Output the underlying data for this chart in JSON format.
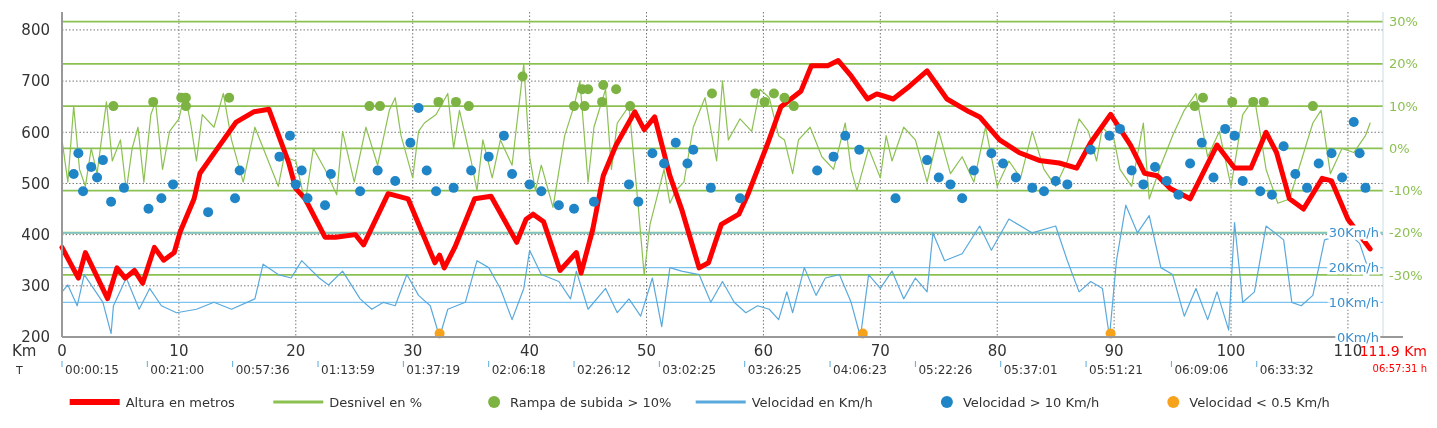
{
  "chart_data": {
    "type": "line",
    "xlabel": "Km",
    "xlim": [
      0,
      113
    ],
    "xticks": [
      0,
      10,
      20,
      30,
      40,
      50,
      60,
      70,
      80,
      90,
      100,
      110
    ],
    "ylim": [
      200,
      835
    ],
    "yticks": [
      200,
      300,
      400,
      500,
      600,
      700,
      800
    ],
    "y2lim": [
      -44.7,
      32.3
    ],
    "y2ticks": [
      {
        "value": 30,
        "label": "30%"
      },
      {
        "value": 20,
        "label": "20%"
      },
      {
        "value": 10,
        "label": "10%"
      },
      {
        "value": 0,
        "label": "0%"
      },
      {
        "value": -10,
        "label": "-10%"
      },
      {
        "value": -20,
        "label": "-20%"
      },
      {
        "value": -30,
        "label": "-30%"
      }
    ],
    "y3lim": [
      0,
      93.7
    ],
    "y3ticks": [
      {
        "value": 0,
        "label": "0Km/h"
      },
      {
        "value": 10,
        "label": "10Km/h"
      },
      {
        "value": 20,
        "label": "20Km/h"
      },
      {
        "value": 30,
        "label": "30Km/h"
      }
    ],
    "grid": true,
    "legend": "bottom",
    "annotations": [
      "T",
      "00:00:15",
      "00:21:00",
      "00:57:36",
      "01:13:59",
      "01:37:19",
      "02:06:18",
      "02:26:12",
      "03:02:25",
      "03:26:25",
      "04:06:23",
      "05:22:26",
      "05:37:01",
      "05:51:21",
      "06:09:06",
      "06:33:32",
      "111.9 Km",
      "06:57:31 h"
    ],
    "series": [
      {
        "name": "Altura en metros",
        "color": "#ff0000",
        "x": [
          0,
          1.4,
          2,
          3.9,
          4.7,
          5.4,
          6.2,
          6.9,
          7.9,
          8.7,
          9.6,
          10.1,
          11.3,
          11.8,
          13.5,
          14.9,
          16.4,
          17.7,
          19.4,
          20,
          20.8,
          22.5,
          23.4,
          25.1,
          25.8,
          27.9,
          29.6,
          31.9,
          32.3,
          32.7,
          33.6,
          35.3,
          36.7,
          38.9,
          39.7,
          40.3,
          41.2,
          42.6,
          44,
          44.4,
          45.4,
          46.3,
          47.4,
          49,
          49.8,
          50.7,
          52,
          53,
          54.5,
          55.3,
          56.4,
          57.9,
          58.7,
          60.4,
          61.5,
          63.2,
          64.1,
          65.5,
          66.4,
          67.5,
          68.9,
          69.7,
          71.1,
          72.5,
          74,
          75.7,
          77.6,
          78.5,
          80.2,
          81.9,
          83.6,
          85.3,
          86.8,
          88,
          89.7,
          91.4,
          92.6,
          93.7,
          94.8,
          96.5,
          98.8,
          100.3,
          101.7,
          103,
          103.9,
          105,
          106.2,
          107.8,
          108.6,
          110,
          111.9
        ],
        "values": [
          375,
          315,
          365,
          275,
          335,
          315,
          330,
          305,
          375,
          350,
          365,
          405,
          470,
          520,
          575,
          620,
          640,
          645,
          540,
          490,
          470,
          395,
          395,
          400,
          380,
          480,
          470,
          345,
          360,
          335,
          375,
          470,
          475,
          385,
          430,
          440,
          425,
          330,
          365,
          325,
          410,
          515,
          575,
          640,
          605,
          630,
          515,
          450,
          335,
          345,
          420,
          440,
          480,
          580,
          650,
          680,
          730,
          730,
          740,
          710,
          665,
          675,
          665,
          690,
          720,
          665,
          640,
          630,
          585,
          560,
          545,
          540,
          530,
          580,
          635,
          575,
          520,
          515,
          490,
          470,
          575,
          530,
          530,
          600,
          560,
          470,
          450,
          510,
          505,
          430,
          372
        ]
      },
      {
        "name": "Desnivel en %",
        "axis": "y2",
        "color": "#8cc152",
        "x": [
          0,
          0.5,
          1,
          1.5,
          2,
          2.5,
          3,
          3.8,
          4.3,
          5,
          5.5,
          6,
          6.5,
          7,
          7.6,
          8,
          8.6,
          9.2,
          10,
          10.5,
          11,
          11.5,
          12,
          13,
          13.8,
          14.5,
          15.5,
          16.5,
          17.5,
          18.5,
          19,
          20,
          20.8,
          21.5,
          22.5,
          23.5,
          24,
          25,
          26,
          27,
          28,
          28.5,
          29,
          30,
          30.5,
          31,
          32,
          33,
          33.5,
          34,
          35,
          35.5,
          36,
          36.8,
          37.5,
          38.5,
          39.5,
          40,
          40.5,
          41,
          42,
          43,
          43.8,
          44.3,
          45,
          45.5,
          46.5,
          47,
          47.5,
          48.5,
          49.3,
          49.8,
          50.3,
          51.5,
          52,
          52.5,
          53.2,
          54,
          55,
          56,
          56.5,
          57,
          58,
          59,
          59.7,
          60.5,
          61.3,
          61.8,
          62.5,
          63,
          64,
          65,
          66,
          67,
          67.5,
          68,
          69,
          70,
          70.5,
          71,
          72,
          73,
          74,
          75,
          76,
          77,
          78,
          79,
          80,
          81,
          82,
          83,
          84,
          85,
          86,
          87,
          87.8,
          88.5,
          89,
          90,
          90.5,
          91.5,
          92.5,
          93,
          94,
          95,
          96,
          97,
          98,
          99,
          100,
          101,
          102,
          103,
          104,
          105,
          106,
          107,
          107.7,
          108.5,
          109.5,
          110.5,
          111.5,
          111.9
        ],
        "values": [
          2,
          -8,
          10,
          -5,
          -9,
          0,
          -6,
          11,
          -3,
          2,
          -10,
          0,
          5,
          -8,
          8,
          11,
          -5,
          4,
          7,
          13,
          6,
          -3,
          8,
          5,
          13,
          2,
          -8,
          5,
          -2,
          -9,
          -2,
          -3,
          -13,
          0,
          -5,
          -11,
          4,
          -8,
          5,
          -4,
          9,
          12,
          3,
          -7,
          4,
          6,
          8,
          13,
          0,
          9,
          -3,
          -10,
          2,
          -7,
          2,
          -4,
          20,
          -2,
          -10,
          -4,
          -14,
          3,
          10,
          16,
          -8,
          5,
          14,
          -5,
          6,
          10,
          -14,
          -30,
          -18,
          -5,
          -13,
          -10,
          -8,
          5,
          12,
          -3,
          16,
          2,
          7,
          4,
          14,
          12,
          3,
          2,
          -6,
          2,
          5,
          -2,
          -5,
          6,
          -5,
          -10,
          0,
          -7,
          3,
          -3,
          5,
          2,
          -8,
          4,
          -6,
          -2,
          -8,
          5,
          -9,
          -3,
          -7,
          4,
          -5,
          -9,
          -3,
          7,
          4,
          -3,
          5,
          2,
          -5,
          -9,
          6,
          -12,
          -4,
          3,
          9,
          13,
          -2,
          4,
          -9,
          8,
          12,
          -5,
          -13,
          -12,
          -3,
          6,
          9,
          -6,
          0,
          -1,
          3,
          6
        ]
      },
      {
        "name": "Rampa de subida > 10%",
        "type": "scatter",
        "axis": "y2",
        "color": "#7cb342",
        "x": [
          4.4,
          7.8,
          10.2,
          10.6,
          10.6,
          14.3,
          26.3,
          27.2,
          32.2,
          33.7,
          34.8,
          39.4,
          43.8,
          44.5,
          45,
          44.7,
          46.3,
          46.2,
          47.4,
          48.6,
          55.6,
          59.3,
          60.1,
          60.9,
          61.8,
          62.6,
          96.9,
          97.6,
          100.1,
          101.9,
          102.8,
          107
        ],
        "values": [
          10,
          11,
          12,
          12,
          10,
          12,
          10,
          10,
          11,
          11,
          10,
          17,
          10,
          14,
          14,
          10,
          15,
          11,
          14,
          10,
          13,
          13,
          11,
          13,
          12,
          10,
          10,
          12,
          11,
          11,
          11,
          10
        ]
      },
      {
        "name": "Velocidad en Km/h",
        "axis": "y3",
        "color": "#5aa9dc",
        "x": [
          0,
          0.5,
          1.3,
          1.9,
          3.5,
          4.2,
          4.4,
          5.5,
          6.6,
          7.5,
          8.5,
          9.8,
          11.5,
          13,
          14.5,
          16.5,
          17.2,
          18.5,
          19.6,
          20.5,
          22,
          22.8,
          24,
          25.5,
          26.5,
          27.5,
          28.5,
          29.5,
          30.5,
          31.5,
          32.3,
          33,
          34.5,
          35.5,
          36.5,
          37.5,
          38.5,
          39.5,
          40,
          41,
          42.5,
          43.5,
          44,
          45,
          46.5,
          47.5,
          48.5,
          49.5,
          50.5,
          51.3,
          52,
          53,
          54.5,
          55.5,
          56.5,
          57.5,
          58.5,
          59.5,
          60.5,
          61.3,
          62,
          62.5,
          63.5,
          64.5,
          65.3,
          66.5,
          67.5,
          68.3,
          69,
          70,
          71,
          72,
          73,
          74,
          74.5,
          75.5,
          77,
          78.5,
          79.5,
          81,
          83,
          85,
          86,
          87,
          88,
          89,
          89.6,
          90.2,
          91,
          92,
          93,
          94,
          95,
          96,
          97,
          98,
          98.8,
          99.8,
          100.3,
          101,
          102,
          103,
          104.5,
          105.2,
          106,
          107,
          108,
          110,
          111,
          111.9
        ],
        "values": [
          13,
          15,
          9,
          18,
          10,
          1,
          9,
          17,
          8,
          14,
          9,
          7,
          8,
          10,
          8,
          11,
          21,
          18,
          17,
          22,
          17,
          15,
          19,
          11,
          8,
          10,
          9,
          18,
          12,
          9,
          0,
          8,
          10,
          22,
          20,
          14,
          5,
          14,
          25,
          18,
          16,
          11,
          19,
          8,
          14,
          7,
          11,
          6,
          17,
          3,
          20,
          19,
          18,
          10,
          16,
          10,
          7,
          9,
          8,
          5,
          13,
          7,
          20,
          12,
          17,
          18,
          10,
          0,
          18,
          14,
          19,
          11,
          17,
          13,
          30,
          22,
          24,
          32,
          25,
          34,
          30,
          32,
          22,
          13,
          16,
          14,
          0,
          22,
          38,
          30,
          35,
          20,
          18,
          6,
          14,
          5,
          13,
          2,
          33,
          10,
          13,
          32,
          28,
          10,
          9,
          12,
          28,
          30,
          27,
          18
        ]
      },
      {
        "name": "Velocidad > 10 Km/h",
        "type": "scatter",
        "axis": "y3",
        "color": "#1f85c7",
        "x": [
          1,
          1.4,
          1.8,
          2.5,
          3,
          3.5,
          4.2,
          5.3,
          7.4,
          8.5,
          9.5,
          12.5,
          14.8,
          15.2,
          18.6,
          19.5,
          20,
          20.5,
          21,
          22.5,
          23,
          25.5,
          27,
          28.5,
          29.8,
          30.5,
          31.2,
          32,
          33.5,
          35,
          36.5,
          37.8,
          38.5,
          40,
          41,
          42.5,
          43.8,
          45.5,
          48.5,
          49.3,
          50.5,
          51.5,
          52.5,
          53.5,
          54,
          55.5,
          58,
          64.6,
          66,
          67,
          68.2,
          71.3,
          74,
          75,
          76,
          77,
          78,
          79.5,
          80.5,
          81.6,
          83,
          84,
          85,
          86,
          88,
          89.6,
          90.5,
          91.5,
          92.5,
          93.5,
          94.5,
          95.5,
          96.5,
          97.5,
          98.5,
          99.5,
          100.3,
          101,
          102.5,
          103.5,
          104.5,
          105.5,
          106.5,
          107.5,
          108.6,
          109.5,
          110.5,
          111,
          111.5
        ],
        "values": [
          47,
          53,
          42,
          49,
          46,
          51,
          39,
          43,
          37,
          40,
          44,
          36,
          40,
          48,
          52,
          58,
          44,
          48,
          40,
          38,
          47,
          42,
          48,
          45,
          56,
          66,
          48,
          42,
          43,
          48,
          52,
          58,
          47,
          44,
          42,
          38,
          37,
          39,
          44,
          39,
          53,
          50,
          56,
          50,
          54,
          43,
          40,
          48,
          52,
          58,
          54,
          40,
          51,
          46,
          44,
          40,
          48,
          53,
          50,
          46,
          43,
          42,
          45,
          44,
          54,
          58,
          60,
          48,
          44,
          49,
          45,
          41,
          50,
          56,
          46,
          60,
          58,
          45,
          42,
          41,
          55,
          47,
          43,
          50,
          53,
          46,
          62,
          53,
          43
        ]
      },
      {
        "name": "Velocidad < 0.5 Km/h",
        "type": "scatter",
        "axis": "y3",
        "color": "#f7a21b",
        "x": [
          32.3,
          68.5,
          89.7
        ],
        "values": [
          1,
          1,
          1
        ]
      }
    ]
  }
}
